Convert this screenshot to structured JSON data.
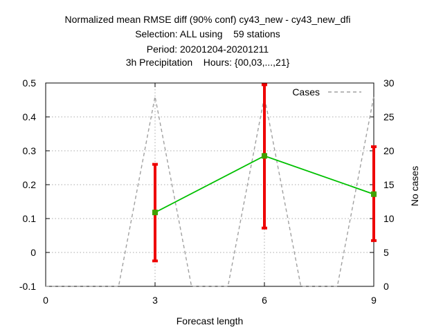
{
  "chart_data": {
    "type": "line",
    "title_lines": [
      "Normalized mean RMSE diff (90% conf) cy43_new - cy43_new_dfi",
      "Selection: ALL using    59 stations",
      "Period: 20201204-20201211",
      "3h Precipitation    Hours: {00,03,...,21}"
    ],
    "xlabel": "Forecast length",
    "ylabel": "",
    "y2label": "No cases",
    "xlim": [
      0,
      9
    ],
    "ylim": [
      -0.1,
      0.5
    ],
    "y2lim": [
      0,
      30
    ],
    "x_ticks": [
      "0",
      "3",
      "6",
      "9"
    ],
    "y_ticks": [
      "-0.1",
      "0",
      "0.1",
      "0.2",
      "0.3",
      "0.4",
      "0.5"
    ],
    "y2_ticks": [
      "0",
      "5",
      "10",
      "15",
      "20",
      "25",
      "30"
    ],
    "grid": true,
    "legend_position": "top-right",
    "series": [
      {
        "name": "",
        "color": "#00c000",
        "x": [
          3,
          6,
          9
        ],
        "y": [
          0.118,
          0.285,
          0.172
        ],
        "error_low": [
          -0.025,
          0.072,
          0.035
        ],
        "error_high": [
          0.26,
          0.495,
          0.312
        ],
        "error_color": "#ee0000"
      },
      {
        "name": "Cases",
        "axis": "right",
        "style": "dashed",
        "color": "#a0a0a0",
        "x": [
          0,
          2,
          3,
          4,
          5,
          6,
          7,
          8,
          9
        ],
        "y": [
          0,
          0,
          28,
          0,
          0,
          28,
          0,
          0,
          28
        ]
      }
    ]
  }
}
